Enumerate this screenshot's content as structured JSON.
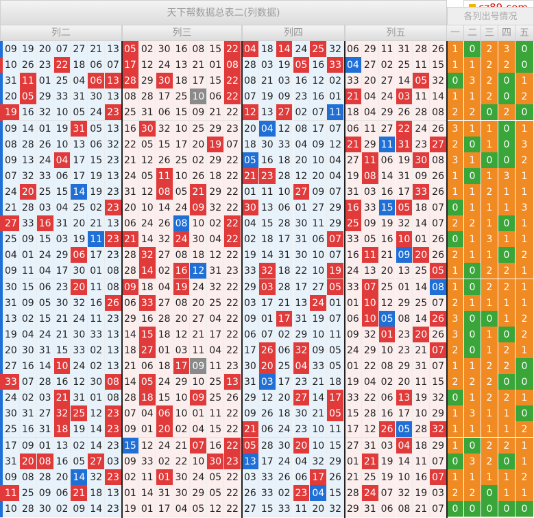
{
  "title": "天下帮数据总表二(列数据)",
  "side_title": "各列出号情况",
  "logo": "cz89.com",
  "groups": [
    "列二",
    "列三",
    "列四",
    "列五"
  ],
  "side_headers": [
    "一",
    "二",
    "三",
    "四",
    "五"
  ],
  "colors": {
    "red": "#e03a3a",
    "blue": "#1f6fd6",
    "gray": "#8a8a8a",
    "orange": "#f08a23",
    "green": "#3aa63a"
  },
  "rows": [
    {
      "edge": "b",
      "g": [
        [
          "09",
          "19",
          "20",
          "07",
          "27",
          "21",
          "13"
        ],
        [
          "05r",
          "02",
          "30",
          "16",
          "08",
          "15",
          "22r"
        ],
        [
          "04r",
          "18",
          "14r",
          "24",
          "25r",
          "32"
        ],
        [
          "06",
          "29",
          "11",
          "31",
          "28",
          "26"
        ]
      ],
      "s": [
        "1",
        "0",
        "2",
        "3",
        "0"
      ]
    },
    {
      "edge": "r",
      "g": [
        [
          "10",
          "26",
          "23",
          "22r",
          "18",
          "06",
          "07"
        ],
        [
          "17r",
          "12",
          "24",
          "13",
          "21",
          "01",
          "08r"
        ],
        [
          "28",
          "03",
          "19",
          "05r",
          "16",
          "33r"
        ],
        [
          "04b",
          "27",
          "02",
          "25",
          "11",
          "15"
        ]
      ],
      "s": [
        "1",
        "1",
        "2",
        "2",
        "0"
      ]
    },
    {
      "edge": "b",
      "g": [
        [
          "31",
          "11r",
          "01",
          "25",
          "04",
          "06r",
          "13r"
        ],
        [
          "28r",
          "29",
          "30r",
          "18",
          "17",
          "15",
          "22r"
        ],
        [
          "08",
          "21",
          "03",
          "16",
          "12",
          "02"
        ],
        [
          "33",
          "20",
          "27",
          "14",
          "05r",
          "32"
        ]
      ],
      "s": [
        "0",
        "3",
        "2",
        "0",
        "1"
      ]
    },
    {
      "edge": "b",
      "g": [
        [
          "20",
          "05r",
          "29",
          "33",
          "31",
          "30",
          "13"
        ],
        [
          "08",
          "28",
          "17",
          "25",
          "10g",
          "06",
          "22r"
        ],
        [
          "07",
          "19",
          "09",
          "23",
          "16",
          "01"
        ],
        [
          "21r",
          "04",
          "24",
          "03r",
          "11",
          "14"
        ]
      ],
      "s": [
        "1",
        "1",
        "2",
        "0",
        "2"
      ]
    },
    {
      "edge": "r",
      "g": [
        [
          "19r",
          "16",
          "32",
          "10",
          "05",
          "24",
          "23r"
        ],
        [
          "25",
          "31",
          "06",
          "15",
          "09",
          "21",
          "22"
        ],
        [
          "12r",
          "13",
          "27r",
          "02",
          "07",
          "11b"
        ],
        [
          "18",
          "04",
          "29",
          "26",
          "28",
          "08"
        ]
      ],
      "s": [
        "2",
        "2",
        "0",
        "2",
        "0"
      ]
    },
    {
      "edge": "b",
      "g": [
        [
          "09",
          "14",
          "01",
          "19",
          "31r",
          "05",
          "13"
        ],
        [
          "16",
          "30r",
          "32",
          "10",
          "25",
          "29",
          "23"
        ],
        [
          "20",
          "04b",
          "12",
          "08",
          "17",
          "07"
        ],
        [
          "06",
          "11",
          "27",
          "22r",
          "24",
          "26"
        ]
      ],
      "s": [
        "3",
        "1",
        "1",
        "0",
        "1"
      ]
    },
    {
      "edge": "b",
      "g": [
        [
          "08",
          "28",
          "26",
          "10",
          "13",
          "06",
          "32"
        ],
        [
          "22",
          "05",
          "15",
          "17",
          "20",
          "19r",
          "07"
        ],
        [
          "18",
          "30",
          "33",
          "04",
          "09",
          "12"
        ],
        [
          "21r",
          "29",
          "11b",
          "31r",
          "23",
          "27r"
        ]
      ],
      "s": [
        "2",
        "0",
        "1",
        "0",
        "3"
      ]
    },
    {
      "edge": "b",
      "g": [
        [
          "09",
          "13",
          "24",
          "04r",
          "17",
          "15",
          "23"
        ],
        [
          "21",
          "12",
          "26",
          "25",
          "02",
          "29",
          "22"
        ],
        [
          "05b",
          "16",
          "18",
          "20",
          "10",
          "04"
        ],
        [
          "27",
          "11r",
          "06",
          "19",
          "30r",
          "08"
        ]
      ],
      "s": [
        "3",
        "1",
        "0",
        "0",
        "2"
      ]
    },
    {
      "edge": "b",
      "g": [
        [
          "07",
          "32",
          "33",
          "06",
          "17",
          "19",
          "13"
        ],
        [
          "24",
          "05",
          "11r",
          "10",
          "26",
          "18",
          "22"
        ],
        [
          "21r",
          "23r",
          "28",
          "12",
          "20",
          "04"
        ],
        [
          "19",
          "08r",
          "14",
          "31",
          "09",
          "26"
        ]
      ],
      "s": [
        "1",
        "0",
        "1",
        "3",
        "1"
      ]
    },
    {
      "edge": "b",
      "g": [
        [
          "24",
          "20r",
          "25",
          "15",
          "14b",
          "19",
          "23"
        ],
        [
          "31",
          "12",
          "08r",
          "05",
          "21r",
          "29",
          "22"
        ],
        [
          "01",
          "11",
          "10",
          "27r",
          "09",
          "07"
        ],
        [
          "31",
          "03",
          "16",
          "17",
          "33r",
          "26"
        ]
      ],
      "s": [
        "1",
        "1",
        "2",
        "1",
        "1"
      ]
    },
    {
      "edge": "b",
      "g": [
        [
          "21",
          "28",
          "03",
          "04",
          "25",
          "02",
          "23r"
        ],
        [
          "20",
          "10",
          "14",
          "24",
          "09r",
          "32",
          "22"
        ],
        [
          "30r",
          "13",
          "06",
          "01",
          "27",
          "29"
        ],
        [
          "16r",
          "33",
          "15b",
          "05r",
          "18",
          "07"
        ]
      ],
      "s": [
        "0",
        "1",
        "1",
        "1",
        "3"
      ]
    },
    {
      "edge": "r",
      "g": [
        [
          "27r",
          "33",
          "16r",
          "31",
          "20",
          "21",
          "13"
        ],
        [
          "06",
          "24",
          "26",
          "08b",
          "10",
          "02",
          "22r"
        ],
        [
          "04",
          "15",
          "28",
          "30",
          "11",
          "29"
        ],
        [
          "25r",
          "09",
          "19",
          "32",
          "14",
          "07"
        ]
      ],
      "s": [
        "2",
        "2",
        "1",
        "0",
        "1"
      ]
    },
    {
      "edge": "b",
      "g": [
        [
          "25",
          "09",
          "15",
          "03",
          "19",
          "11b",
          "23r"
        ],
        [
          "21r",
          "14",
          "32",
          "24r",
          "30",
          "04",
          "22r"
        ],
        [
          "02",
          "18",
          "17",
          "31",
          "06",
          "07r"
        ],
        [
          "33",
          "05",
          "16",
          "10r",
          "01",
          "26"
        ]
      ],
      "s": [
        "0",
        "1",
        "3",
        "1",
        "1"
      ]
    },
    {
      "edge": "b",
      "g": [
        [
          "04",
          "01",
          "24",
          "29",
          "06r",
          "17",
          "23"
        ],
        [
          "28",
          "32r",
          "27",
          "08",
          "18",
          "12",
          "22"
        ],
        [
          "19",
          "14",
          "31",
          "30",
          "10",
          "07"
        ],
        [
          "16",
          "11r",
          "21",
          "09b",
          "20r",
          "26"
        ]
      ],
      "s": [
        "2",
        "1",
        "1",
        "0",
        "2"
      ]
    },
    {
      "edge": "b",
      "g": [
        [
          "09",
          "11",
          "04",
          "17",
          "30",
          "01",
          "08"
        ],
        [
          "28",
          "14r",
          "02",
          "16r",
          "12b",
          "31",
          "23"
        ],
        [
          "33",
          "32r",
          "18",
          "22",
          "10",
          "19r"
        ],
        [
          "24",
          "13",
          "20",
          "13",
          "25",
          "05r"
        ]
      ],
      "s": [
        "1",
        "0",
        "2",
        "2",
        "1"
      ]
    },
    {
      "edge": "b",
      "g": [
        [
          "30",
          "15",
          "06",
          "23",
          "20r",
          "11",
          "08"
        ],
        [
          "09r",
          "18",
          "04",
          "19r",
          "24",
          "32",
          "22"
        ],
        [
          "29",
          "03r",
          "28",
          "17",
          "27",
          "05r"
        ],
        [
          "33",
          "07r",
          "25",
          "01",
          "14",
          "08b"
        ]
      ],
      "s": [
        "1",
        "0",
        "2",
        "2",
        "1"
      ]
    },
    {
      "edge": "b",
      "g": [
        [
          "31",
          "09",
          "05",
          "30",
          "32",
          "16",
          "26r"
        ],
        [
          "06",
          "33r",
          "27",
          "08",
          "20",
          "25",
          "22"
        ],
        [
          "03",
          "17",
          "21",
          "13",
          "24r",
          "01"
        ],
        [
          "01",
          "10r",
          "12",
          "29",
          "25",
          "07"
        ]
      ],
      "s": [
        "2",
        "1",
        "1",
        "1",
        "1"
      ]
    },
    {
      "edge": "b",
      "g": [
        [
          "13",
          "02",
          "15",
          "21",
          "24",
          "11",
          "23"
        ],
        [
          "29",
          "16",
          "28",
          "20",
          "27",
          "04",
          "22"
        ],
        [
          "09",
          "01",
          "17r",
          "31",
          "19",
          "07"
        ],
        [
          "06",
          "10r",
          "05b",
          "08",
          "14",
          "26r"
        ]
      ],
      "s": [
        "3",
        "0",
        "0",
        "1",
        "2"
      ]
    },
    {
      "edge": "b",
      "g": [
        [
          "19",
          "04",
          "24",
          "21",
          "30",
          "33",
          "13"
        ],
        [
          "14",
          "15r",
          "18",
          "12",
          "21",
          "17",
          "22"
        ],
        [
          "06",
          "07",
          "02",
          "29",
          "10",
          "11"
        ],
        [
          "09",
          "32",
          "01r",
          "23",
          "20r",
          "26"
        ]
      ],
      "s": [
        "3",
        "0",
        "1",
        "0",
        "2"
      ]
    },
    {
      "edge": "b",
      "g": [
        [
          "20",
          "30",
          "31",
          "15",
          "33",
          "02",
          "13"
        ],
        [
          "18",
          "27r",
          "01",
          "03",
          "11",
          "04",
          "22"
        ],
        [
          "17",
          "26r",
          "06",
          "32r",
          "09",
          "05"
        ],
        [
          "24",
          "29",
          "10",
          "23",
          "21",
          "07r"
        ]
      ],
      "s": [
        "2",
        "0",
        "1",
        "2",
        "1"
      ]
    },
    {
      "edge": "b",
      "g": [
        [
          "27",
          "16",
          "14",
          "10r",
          "24",
          "02",
          "13"
        ],
        [
          "21",
          "06",
          "18",
          "17r",
          "09g",
          "11",
          "23"
        ],
        [
          "30",
          "20r",
          "25",
          "04r",
          "33",
          "05"
        ],
        [
          "01",
          "22",
          "08",
          "29",
          "31",
          "07"
        ]
      ],
      "s": [
        "1",
        "1",
        "2",
        "2",
        "0"
      ]
    },
    {
      "edge": "r",
      "g": [
        [
          "33r",
          "07",
          "28",
          "16",
          "12",
          "30",
          "08r"
        ],
        [
          "14",
          "05r",
          "24",
          "29",
          "10",
          "25",
          "13r"
        ],
        [
          "31",
          "03b",
          "17",
          "23",
          "21",
          "18"
        ],
        [
          "19",
          "04",
          "02",
          "20",
          "11",
          "15"
        ]
      ],
      "s": [
        "2",
        "2",
        "2",
        "0",
        "0"
      ]
    },
    {
      "edge": "b",
      "g": [
        [
          "24",
          "02",
          "03",
          "21r",
          "31",
          "01",
          "08"
        ],
        [
          "28",
          "18r",
          "15",
          "10",
          "09r",
          "25",
          "26"
        ],
        [
          "29",
          "12",
          "20",
          "27r",
          "14",
          "17r"
        ],
        [
          "33",
          "22",
          "06",
          "13r",
          "19",
          "32"
        ]
      ],
      "s": [
        "0",
        "1",
        "2",
        "2",
        "1"
      ]
    },
    {
      "edge": "b",
      "g": [
        [
          "30",
          "31",
          "27",
          "32r",
          "25r",
          "12",
          "23r"
        ],
        [
          "07",
          "04",
          "06r",
          "10",
          "01",
          "11",
          "22"
        ],
        [
          "09",
          "26",
          "18",
          "30",
          "21",
          "05r"
        ],
        [
          "15",
          "28",
          "16",
          "17",
          "10",
          "29"
        ]
      ],
      "s": [
        "1",
        "3",
        "1",
        "1",
        "0"
      ]
    },
    {
      "edge": "b",
      "g": [
        [
          "25",
          "16",
          "31",
          "18r",
          "19",
          "14",
          "23r"
        ],
        [
          "09",
          "01",
          "20r",
          "02",
          "04",
          "15",
          "22"
        ],
        [
          "21r",
          "06",
          "24",
          "23",
          "10",
          "11"
        ],
        [
          "17",
          "12",
          "26r",
          "05b",
          "28",
          "32r"
        ]
      ],
      "s": [
        "1",
        "1",
        "1",
        "1",
        "2"
      ]
    },
    {
      "edge": "b",
      "g": [
        [
          "17",
          "09",
          "01",
          "13",
          "02",
          "14",
          "23"
        ],
        [
          "15b",
          "12",
          "24",
          "21",
          "07r",
          "16",
          "22r"
        ],
        [
          "05r",
          "28",
          "30",
          "20r",
          "10",
          "15"
        ],
        [
          "27",
          "31",
          "03",
          "04r",
          "18",
          "29"
        ]
      ],
      "s": [
        "1",
        "0",
        "2",
        "2",
        "1"
      ]
    },
    {
      "edge": "b",
      "g": [
        [
          "31",
          "20r",
          "08r",
          "16",
          "05",
          "27r",
          "03"
        ],
        [
          "09",
          "33",
          "02",
          "22",
          "10",
          "30r",
          "23r"
        ],
        [
          "13b",
          "17",
          "24",
          "04",
          "32",
          "29"
        ],
        [
          "01",
          "21r",
          "19",
          "14",
          "11",
          "07"
        ]
      ],
      "s": [
        "0",
        "3",
        "2",
        "0",
        "1"
      ]
    },
    {
      "edge": "b",
      "g": [
        [
          "09",
          "08",
          "28",
          "20",
          "14b",
          "32",
          "23r"
        ],
        [
          "02",
          "11",
          "01r",
          "30",
          "24",
          "05",
          "22"
        ],
        [
          "03",
          "33",
          "26",
          "06",
          "17r",
          "26"
        ],
        [
          "21",
          "25",
          "19",
          "10",
          "16",
          "07r"
        ]
      ],
      "s": [
        "1",
        "1",
        "1",
        "1",
        "2"
      ]
    },
    {
      "edge": "r",
      "g": [
        [
          "11r",
          "25",
          "09",
          "06",
          "21r",
          "18",
          "13"
        ],
        [
          "01",
          "14",
          "31",
          "30",
          "29",
          "05",
          "22"
        ],
        [
          "26",
          "33",
          "02",
          "23r",
          "04b",
          "15"
        ],
        [
          "28",
          "24r",
          "07",
          "32",
          "19",
          "03"
        ]
      ],
      "s": [
        "2",
        "2",
        "0",
        "1",
        "1"
      ]
    },
    {
      "edge": "b",
      "g": [
        [
          "10",
          "28",
          "30",
          "02",
          "09",
          "14",
          "23"
        ],
        [
          "19",
          "01",
          "17",
          "04",
          "05",
          "12",
          "22"
        ],
        [
          "27",
          "15",
          "33",
          "11",
          "20",
          "32"
        ],
        [
          "29",
          "31",
          "06",
          "08",
          "21",
          "07"
        ]
      ],
      "s": [
        "0",
        "0",
        "0",
        "0",
        "0"
      ]
    }
  ]
}
